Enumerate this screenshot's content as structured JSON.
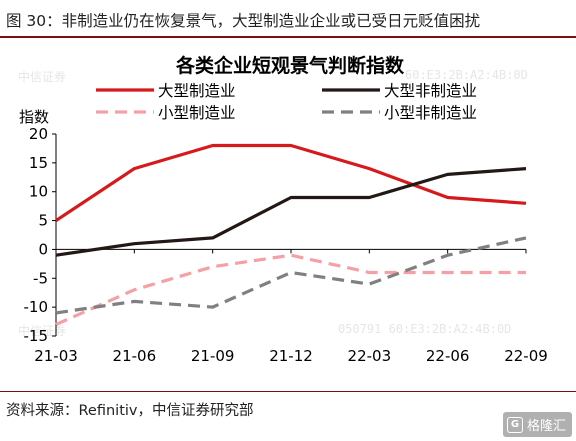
{
  "figure": {
    "header": "图 30：非制造业仍在恢复景气，大型制造业企业或已受日元贬值困扰",
    "source": "资料来源：Refinitiv，中信证券研究部",
    "watermark": {
      "left": "中信证券",
      "right": "60:E3:2B:A2:4B:0D",
      "bottom_left": "中信证券",
      "bottom_right": "050791  60:E3:2B:A2:4B:0D"
    },
    "badge": "格隆汇"
  },
  "chart_data": {
    "type": "line",
    "title": "各类企业短观景气判断指数",
    "ylabel": "指数",
    "xlabel": "",
    "categories": [
      "21-03",
      "21-06",
      "21-09",
      "21-12",
      "22-03",
      "22-06",
      "22-09"
    ],
    "ylim": [
      -15,
      20
    ],
    "yticks": [
      -15,
      -10,
      -5,
      0,
      5,
      10,
      15,
      20
    ],
    "yticklabels": [
      "-15",
      "-10",
      "-5",
      "0",
      "5",
      "10",
      "15",
      "20"
    ],
    "grid": false,
    "legend_position": "top",
    "series": [
      {
        "name": "大型制造业",
        "color": "#d7191c",
        "dash": "solid",
        "values": [
          5,
          14,
          18,
          18,
          14,
          9,
          8
        ]
      },
      {
        "name": "大型非制造业",
        "color": "#231815",
        "dash": "solid",
        "values": [
          -1,
          1,
          2,
          9,
          9,
          13,
          14
        ]
      },
      {
        "name": "小型制造业",
        "color": "#f4a0a4",
        "dash": "dashed",
        "values": [
          -13,
          -7,
          -3,
          -1,
          -4,
          -4,
          -4
        ]
      },
      {
        "name": "小型非制造业",
        "color": "#808080",
        "dash": "dashed",
        "values": [
          -11,
          -9,
          -10,
          -4,
          -6,
          -1,
          2
        ]
      }
    ]
  }
}
